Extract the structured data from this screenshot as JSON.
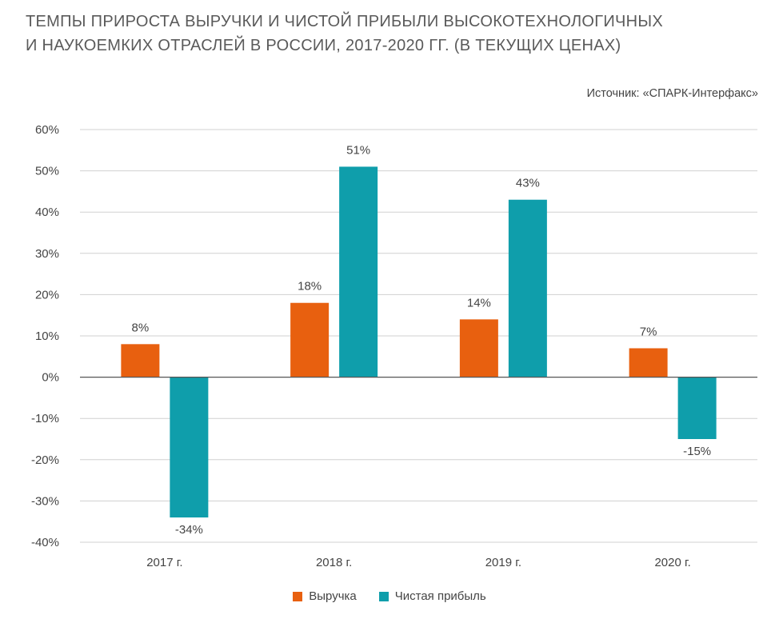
{
  "title_line1": "ТЕМПЫ ПРИРОСТА ВЫРУЧКИ И ЧИСТОЙ ПРИБЫЛИ ВЫСОКОТЕХНОЛОГИЧНЫХ",
  "title_line2": "И НАУКОЕМКИХ ОТРАСЛЕЙ В РОССИИ, 2017-2020 ГГ. (В ТЕКУЩИХ ЦЕНАХ)",
  "source": "Источник: «СПАРК-Интерфакс»",
  "colors": {
    "revenue": "#e8600f",
    "profit": "#0f9eab",
    "grid": "#d0d0d0",
    "zero_line": "#555555"
  },
  "chart_data": {
    "type": "bar",
    "categories": [
      "2017 г.",
      "2018 г.",
      "2019 г.",
      "2020 г."
    ],
    "series": [
      {
        "name": "Выручка",
        "values": [
          8,
          18,
          14,
          7
        ],
        "labels": [
          "8%",
          "18%",
          "14%",
          "7%"
        ]
      },
      {
        "name": "Чистая прибыль",
        "values": [
          -34,
          51,
          43,
          -15
        ],
        "labels": [
          "-34%",
          "51%",
          "43%",
          "-15%"
        ]
      }
    ],
    "ylim": [
      -40,
      60
    ],
    "yticks": [
      60,
      50,
      40,
      30,
      20,
      10,
      0,
      -10,
      -20,
      -30,
      -40
    ],
    "ytick_labels": [
      "60%",
      "50%",
      "40%",
      "30%",
      "20%",
      "10%",
      "0%",
      "-10%",
      "-20%",
      "-30%",
      "-40%"
    ],
    "grid": true,
    "legend_position": "bottom-center"
  }
}
